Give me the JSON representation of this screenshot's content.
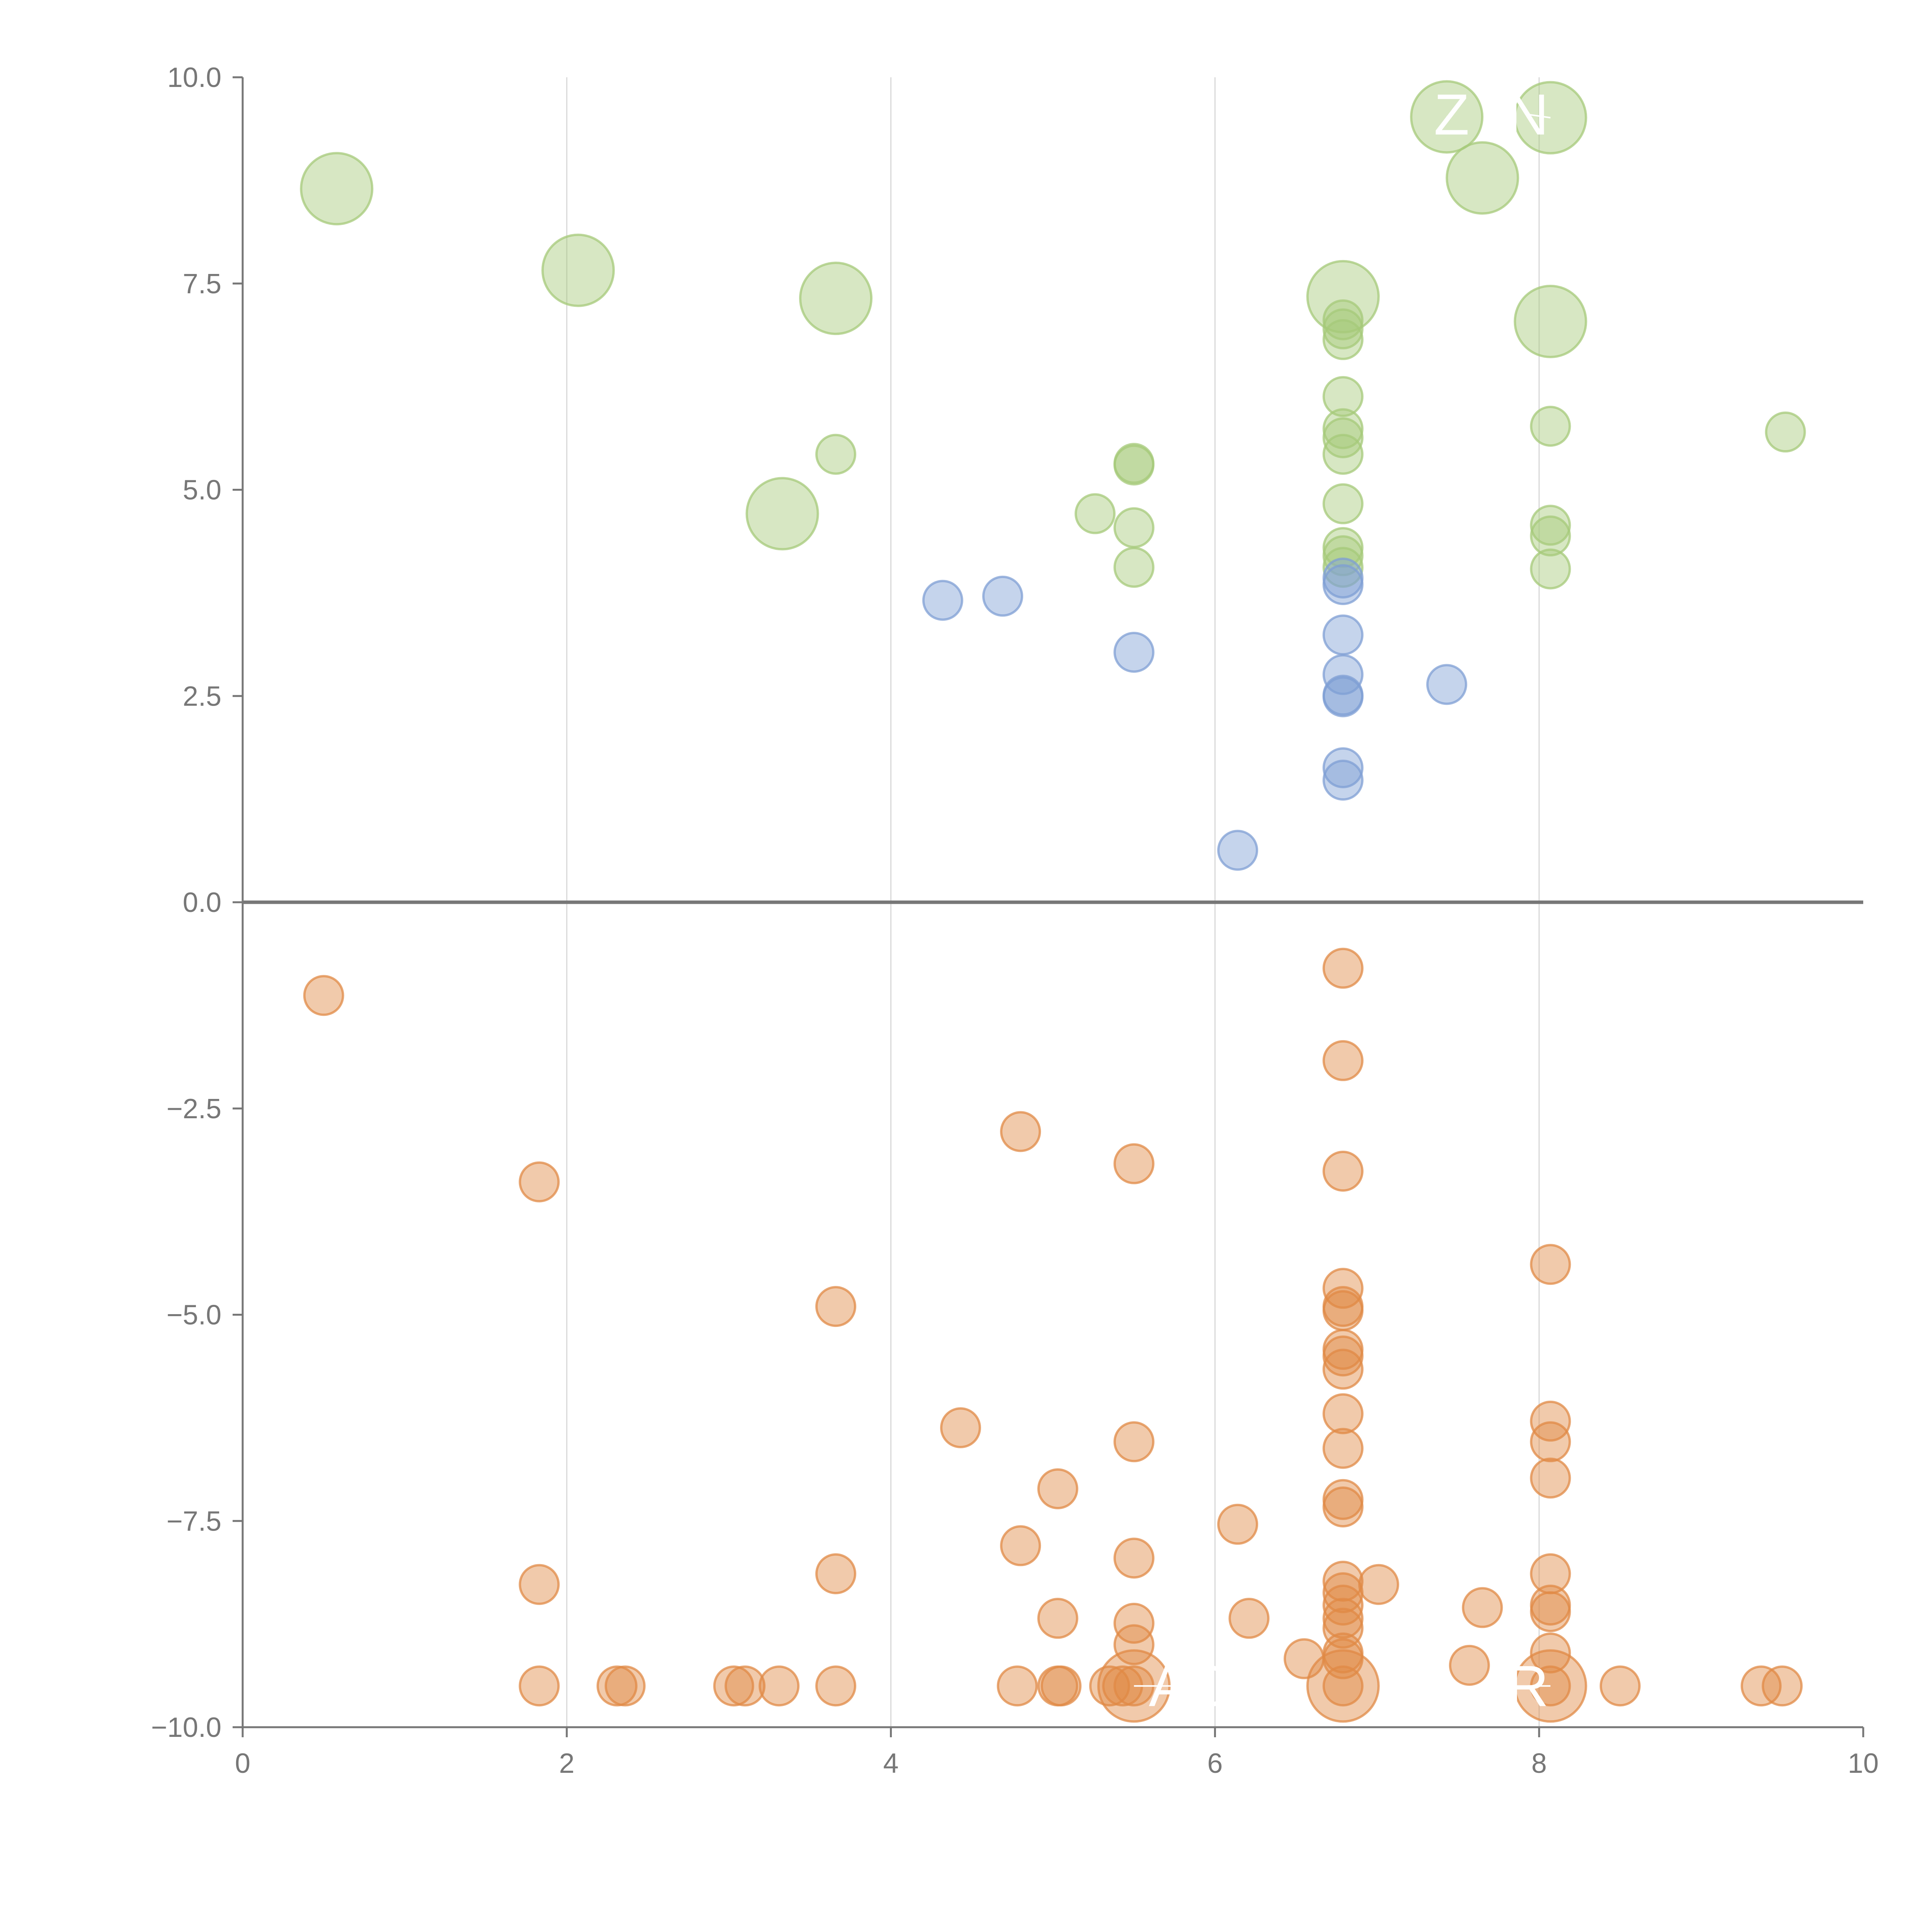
{
  "chart_data": {
    "type": "scatter",
    "title": "",
    "xlabel": "",
    "ylabel": "",
    "xlim": [
      0,
      10
    ],
    "ylim": [
      -10,
      10
    ],
    "x_ticks": [
      "0",
      "2",
      "4",
      "6",
      "8",
      "10"
    ],
    "x_tick_values": [
      0,
      2,
      4,
      6,
      8,
      10
    ],
    "y_ticks": [
      "10.0",
      "7.5",
      "5.0",
      "2.5",
      "0.0",
      "−2.5",
      "−5.0",
      "−7.5",
      "−10.0"
    ],
    "y_tick_values": [
      10,
      7.5,
      5,
      2.5,
      0,
      -2.5,
      -5,
      -7.5,
      -10
    ],
    "x_grid": true,
    "y_grid": false,
    "zero_line": true,
    "series": [
      {
        "name": "green",
        "color": "#a6c97a",
        "points": [
          [
            0.58,
            8.65,
            2
          ],
          [
            2.07,
            7.66,
            2
          ],
          [
            3.66,
            7.32,
            2
          ],
          [
            3.33,
            4.71,
            2
          ],
          [
            3.66,
            5.43,
            1
          ],
          [
            5.26,
            4.71,
            1
          ],
          [
            5.5,
            5.3,
            1
          ],
          [
            5.5,
            5.32,
            1
          ],
          [
            5.5,
            4.54,
            1
          ],
          [
            5.5,
            4.06,
            1
          ],
          [
            6.79,
            7.34,
            2
          ],
          [
            6.79,
            7.06,
            1
          ],
          [
            6.79,
            6.95,
            1
          ],
          [
            6.79,
            6.82,
            1
          ],
          [
            6.79,
            6.13,
            1
          ],
          [
            6.79,
            5.74,
            1
          ],
          [
            6.79,
            5.63,
            1
          ],
          [
            6.79,
            5.43,
            1
          ],
          [
            6.79,
            4.83,
            1
          ],
          [
            6.79,
            4.3,
            1
          ],
          [
            6.79,
            4.2,
            1
          ],
          [
            6.79,
            4.06,
            1
          ],
          [
            7.43,
            9.52,
            2
          ],
          [
            7.65,
            8.78,
            2
          ],
          [
            8.07,
            9.51,
            2
          ],
          [
            8.07,
            7.04,
            2
          ],
          [
            8.07,
            5.77,
            1
          ],
          [
            8.07,
            4.57,
            1
          ],
          [
            8.07,
            4.44,
            1
          ],
          [
            8.07,
            4.04,
            1
          ],
          [
            9.52,
            5.7,
            1
          ]
        ]
      },
      {
        "name": "blue",
        "color": "#7f9fd4",
        "points": [
          [
            4.32,
            3.66,
            1
          ],
          [
            4.69,
            3.71,
            1
          ],
          [
            5.5,
            3.03,
            1
          ],
          [
            6.14,
            0.63,
            1
          ],
          [
            6.79,
            3.93,
            1
          ],
          [
            6.79,
            3.85,
            1
          ],
          [
            6.79,
            3.24,
            1
          ],
          [
            6.79,
            2.76,
            1
          ],
          [
            6.79,
            2.51,
            1
          ],
          [
            6.79,
            2.49,
            1
          ],
          [
            6.79,
            1.63,
            1
          ],
          [
            6.79,
            1.48,
            1
          ],
          [
            7.43,
            2.64,
            1
          ]
        ]
      },
      {
        "name": "orange",
        "color": "#e08a45",
        "points": [
          [
            0.5,
            -1.13,
            1
          ],
          [
            1.83,
            -3.39,
            1
          ],
          [
            1.83,
            -8.27,
            1
          ],
          [
            1.83,
            -9.5,
            1
          ],
          [
            2.31,
            -9.5,
            1
          ],
          [
            2.36,
            -9.5,
            1
          ],
          [
            3.03,
            -9.5,
            1
          ],
          [
            3.1,
            -9.5,
            1
          ],
          [
            3.31,
            -9.5,
            1
          ],
          [
            3.66,
            -4.9,
            1
          ],
          [
            3.66,
            -8.14,
            1
          ],
          [
            3.66,
            -9.5,
            1
          ],
          [
            4.43,
            -6.37,
            1
          ],
          [
            4.8,
            -2.78,
            1
          ],
          [
            4.8,
            -7.8,
            1
          ],
          [
            4.78,
            -9.5,
            1
          ],
          [
            5.03,
            -7.11,
            1
          ],
          [
            5.03,
            -8.68,
            1
          ],
          [
            5.03,
            -9.5,
            1
          ],
          [
            5.05,
            -9.5,
            1
          ],
          [
            5.35,
            -9.5,
            1
          ],
          [
            5.43,
            -9.5,
            1
          ],
          [
            5.5,
            -3.17,
            1
          ],
          [
            5.5,
            -6.54,
            1
          ],
          [
            5.5,
            -7.95,
            1
          ],
          [
            5.5,
            -8.74,
            1
          ],
          [
            5.5,
            -9.0,
            1
          ],
          [
            5.5,
            -9.5,
            2
          ],
          [
            5.5,
            -9.5,
            1
          ],
          [
            6.14,
            -7.54,
            1
          ],
          [
            6.21,
            -8.68,
            1
          ],
          [
            6.55,
            -9.17,
            1
          ],
          [
            6.79,
            -0.8,
            1
          ],
          [
            6.79,
            -1.92,
            1
          ],
          [
            6.79,
            -3.26,
            1
          ],
          [
            6.79,
            -4.68,
            1
          ],
          [
            6.79,
            -4.9,
            1
          ],
          [
            6.79,
            -4.95,
            1
          ],
          [
            6.79,
            -5.42,
            1
          ],
          [
            6.79,
            -5.5,
            1
          ],
          [
            6.79,
            -5.66,
            1
          ],
          [
            6.79,
            -6.2,
            1
          ],
          [
            6.79,
            -6.62,
            1
          ],
          [
            6.79,
            -7.24,
            1
          ],
          [
            6.79,
            -7.33,
            1
          ],
          [
            6.79,
            -8.23,
            1
          ],
          [
            6.79,
            -8.37,
            1
          ],
          [
            6.79,
            -8.52,
            1
          ],
          [
            6.79,
            -8.68,
            1
          ],
          [
            6.79,
            -8.8,
            1
          ],
          [
            6.79,
            -9.1,
            1
          ],
          [
            6.79,
            -9.17,
            1
          ],
          [
            6.79,
            -9.5,
            2
          ],
          [
            6.79,
            -9.5,
            1
          ],
          [
            7.01,
            -8.27,
            1
          ],
          [
            7.57,
            -9.25,
            1
          ],
          [
            7.65,
            -8.55,
            1
          ],
          [
            8.07,
            -4.39,
            1
          ],
          [
            8.07,
            -6.29,
            1
          ],
          [
            8.07,
            -6.54,
            1
          ],
          [
            8.07,
            -6.98,
            1
          ],
          [
            8.07,
            -8.14,
            1
          ],
          [
            8.07,
            -8.52,
            1
          ],
          [
            8.07,
            -8.6,
            1
          ],
          [
            8.07,
            -9.1,
            1
          ],
          [
            8.07,
            -9.5,
            2
          ],
          [
            8.07,
            -9.5,
            1
          ],
          [
            8.5,
            -9.5,
            1
          ],
          [
            9.37,
            -9.5,
            1
          ],
          [
            9.5,
            -9.5,
            1
          ]
        ]
      }
    ],
    "annotations": [
      {
        "text": "Z",
        "x": 7.46,
        "y": 9.55,
        "point": [
          7.43,
          9.52
        ]
      },
      {
        "text": "N",
        "x": 7.93,
        "y": 9.55,
        "point": [
          8.07,
          9.51
        ]
      },
      {
        "text": "AO",
        "x": 5.85,
        "y": -9.5,
        "point": [
          5.5,
          -9.5
        ]
      },
      {
        "text": "R",
        "x": 7.93,
        "y": -9.5,
        "point": [
          8.07,
          -9.5
        ]
      }
    ]
  }
}
